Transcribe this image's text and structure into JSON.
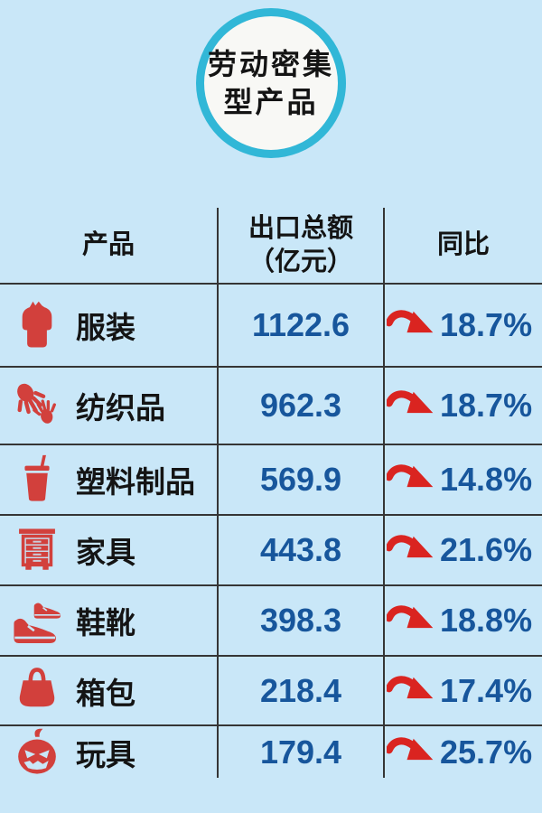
{
  "badge": {
    "line1": "劳动密集",
    "line2": "型产品"
  },
  "table": {
    "headers": {
      "product": "产品",
      "export_line1": "出口总额",
      "export_line2": "（亿元）",
      "yoy": "同比"
    },
    "rows": [
      {
        "icon": "sweater-icon",
        "product": "服装",
        "export": "1122.6",
        "yoy": "18.7%"
      },
      {
        "icon": "hands-icon",
        "product": "纺织品",
        "export": "962.3",
        "yoy": "18.7%"
      },
      {
        "icon": "cup-icon",
        "product": "塑料制品",
        "export": "569.9",
        "yoy": "14.8%"
      },
      {
        "icon": "dresser-icon",
        "product": "家具",
        "export": "443.8",
        "yoy": "21.6%"
      },
      {
        "icon": "shoes-icon",
        "product": "鞋靴",
        "export": "398.3",
        "yoy": "18.8%"
      },
      {
        "icon": "bag-icon",
        "product": "箱包",
        "export": "218.4",
        "yoy": "17.4%"
      },
      {
        "icon": "pumpkin-icon",
        "product": "玩具",
        "export": "179.4",
        "yoy": "25.7%"
      }
    ]
  },
  "chart_data": {
    "type": "table",
    "title": "劳动密集型产品",
    "columns": [
      "产品",
      "出口总额（亿元）",
      "同比"
    ],
    "rows": [
      [
        "服装",
        1122.6,
        "18.7%"
      ],
      [
        "纺织品",
        962.3,
        "18.7%"
      ],
      [
        "塑料制品",
        569.9,
        "14.8%"
      ],
      [
        "家具",
        443.8,
        "21.6%"
      ],
      [
        "鞋靴",
        398.3,
        "18.8%"
      ],
      [
        "箱包",
        218.4,
        "17.4%"
      ],
      [
        "玩具",
        179.4,
        "25.7%"
      ]
    ],
    "trend_marker_per_row": "red-curved-arrow"
  },
  "colors": {
    "background": "#c9e7f8",
    "badge_ring": "#31b7d7",
    "badge_fill": "#f8f8f5",
    "text_black": "#141414",
    "value_blue": "#17569c",
    "icon_red": "#d2403c",
    "arrow_red": "#da2420",
    "line": "#353535"
  }
}
